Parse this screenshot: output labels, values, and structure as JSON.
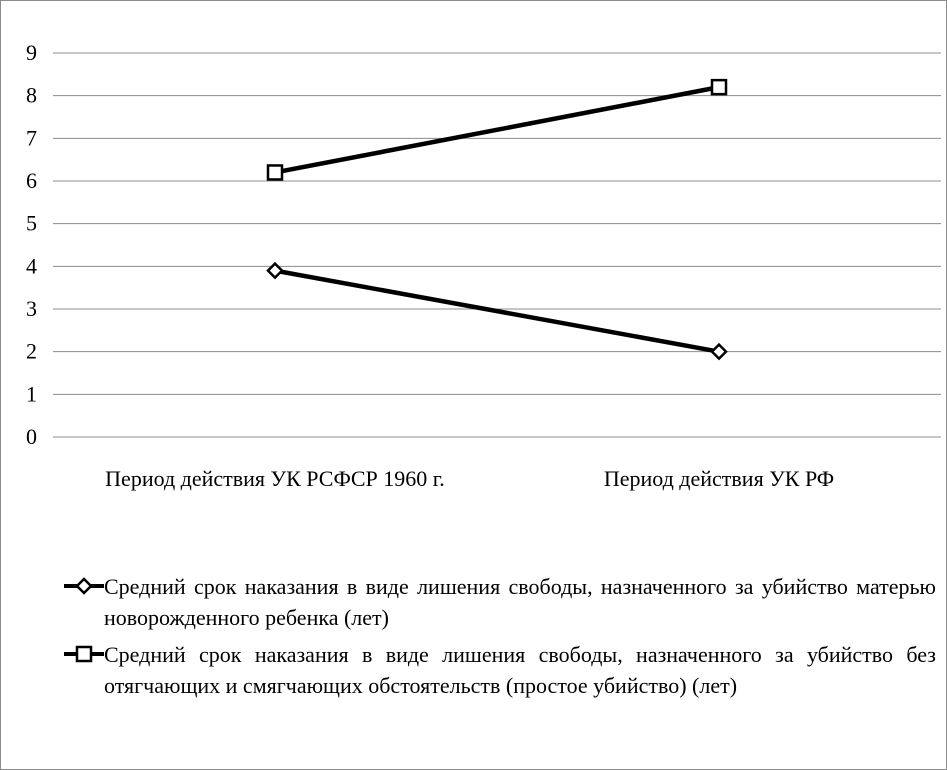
{
  "chart_data": {
    "type": "line",
    "categories": [
      "Период действия УК РСФСР 1960 г.",
      "Период действия УК РФ"
    ],
    "ylim": [
      0,
      9
    ],
    "yticks": [
      0,
      1,
      2,
      3,
      4,
      5,
      6,
      7,
      8,
      9
    ],
    "grid": true,
    "legend_position": "bottom",
    "series": [
      {
        "name": "Средний срок наказания в виде лишения свободы, назначенного за убийство матерью новорожденного ребенка (лет)",
        "marker": "diamond",
        "color": "#000000",
        "values": [
          3.9,
          2.0
        ]
      },
      {
        "name": "Средний срок наказания в виде лишения свободы, назначенного за убийство без отягчающих и смягчающих обстоятельств (простое убийство) (лет)",
        "marker": "square",
        "color": "#000000",
        "values": [
          6.2,
          8.2
        ]
      }
    ]
  }
}
